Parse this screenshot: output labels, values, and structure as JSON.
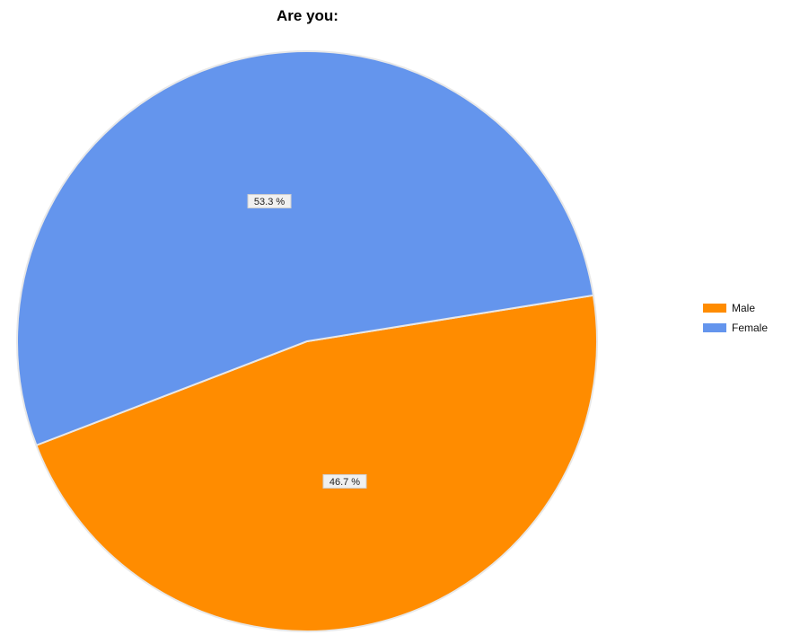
{
  "chart_data": {
    "type": "pie",
    "title": "Are you:",
    "legend_position": "right",
    "slices": [
      {
        "name": "Male",
        "value": 46.7,
        "label": "46.7 %",
        "color": "#FF8C00"
      },
      {
        "name": "Female",
        "value": 53.3,
        "label": "53.3 %",
        "color": "#6495ED"
      }
    ]
  }
}
